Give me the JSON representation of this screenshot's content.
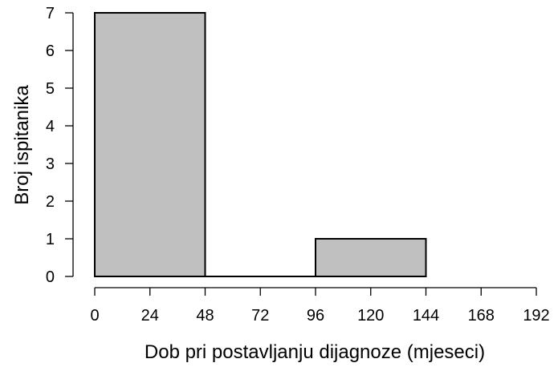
{
  "chart_data": {
    "type": "bar",
    "subtype": "histogram",
    "bins": [
      {
        "start": 0,
        "end": 48,
        "count": 7
      },
      {
        "start": 48,
        "end": 96,
        "count": 0
      },
      {
        "start": 96,
        "end": 144,
        "count": 1
      }
    ],
    "xlabel": "Dob pri postavljanju dijagnoze (mjeseci)",
    "ylabel": "Broj ispitanika",
    "x_ticks": [
      "0",
      "24",
      "48",
      "72",
      "96",
      "120",
      "144",
      "168",
      "192"
    ],
    "y_ticks": [
      "0",
      "1",
      "2",
      "3",
      "4",
      "5",
      "6",
      "7"
    ],
    "xlim": [
      0,
      192
    ],
    "ylim": [
      0,
      7
    ],
    "grid": false,
    "bar_fill": "#c0c0c0",
    "bar_stroke": "#000000"
  }
}
